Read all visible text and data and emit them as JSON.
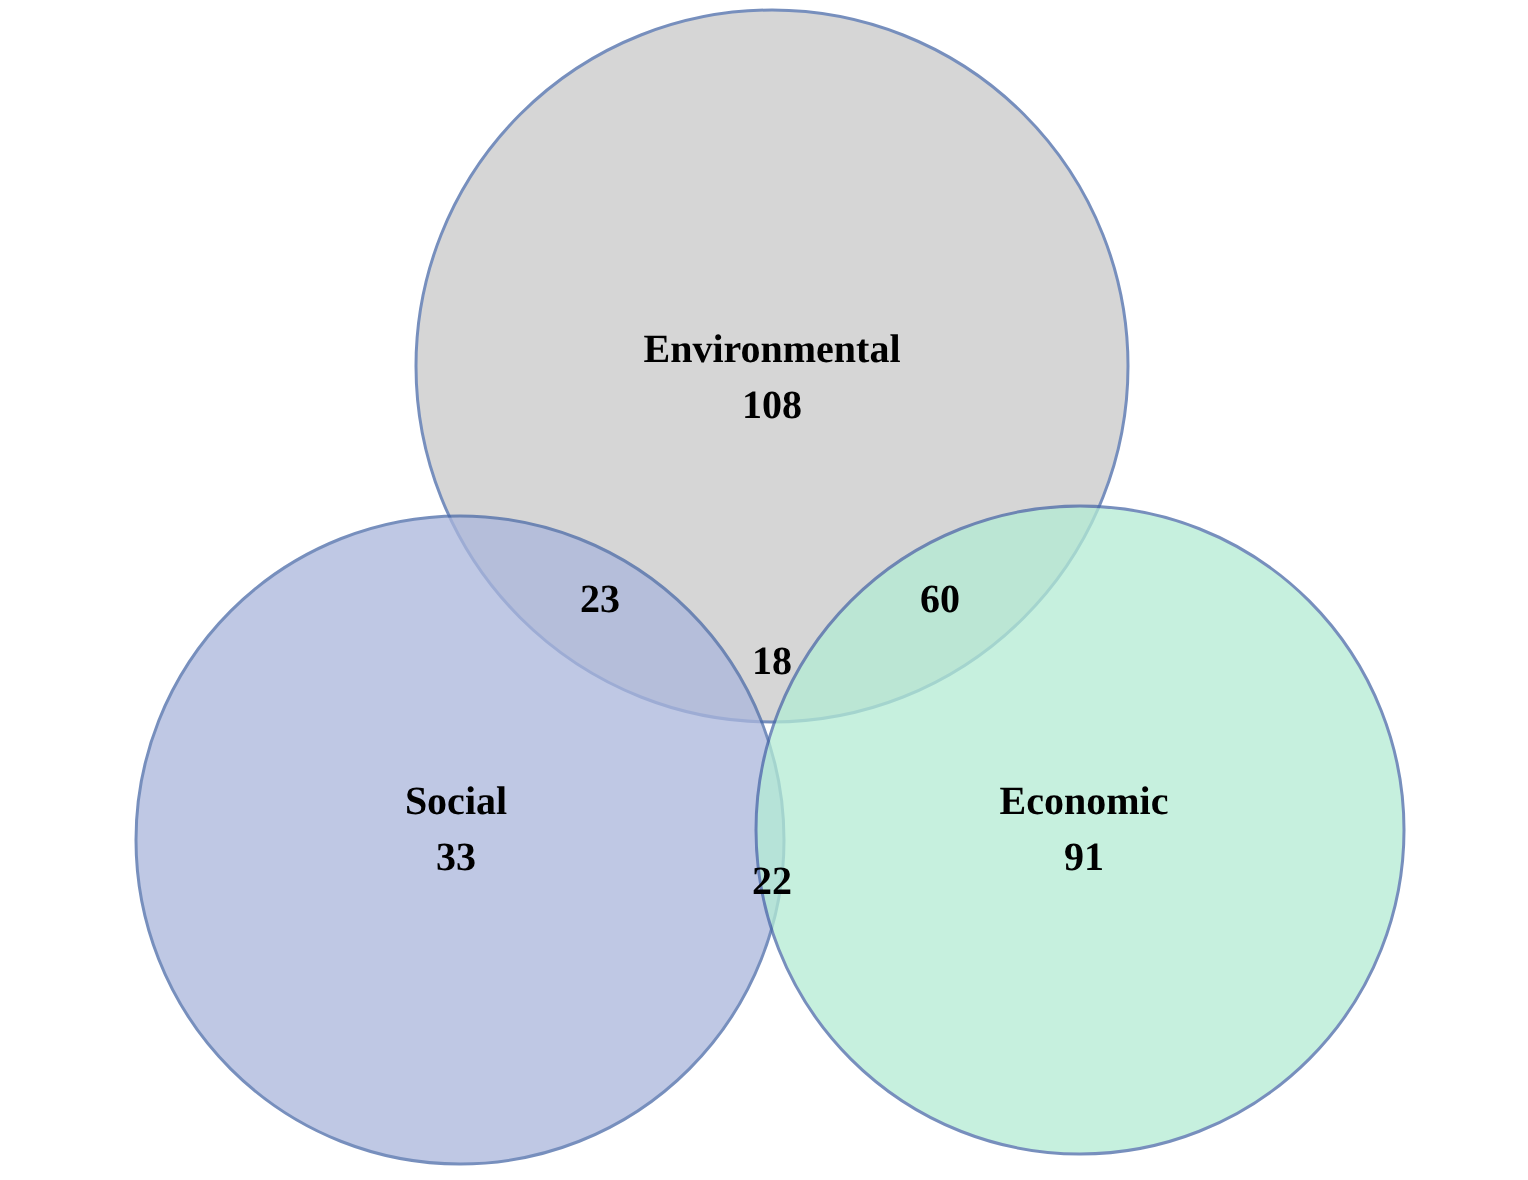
{
  "chart_data": {
    "type": "other",
    "categories": [
      "Environmental",
      "Social",
      "Economic"
    ],
    "values": [
      108,
      33,
      91
    ],
    "data_labels": true,
    "colors": [
      "#c9c9c9",
      "#aab6dc",
      "#b3ecd4"
    ],
    "annotations": [
      "23",
      "60",
      "18",
      "22"
    ]
  }
}
